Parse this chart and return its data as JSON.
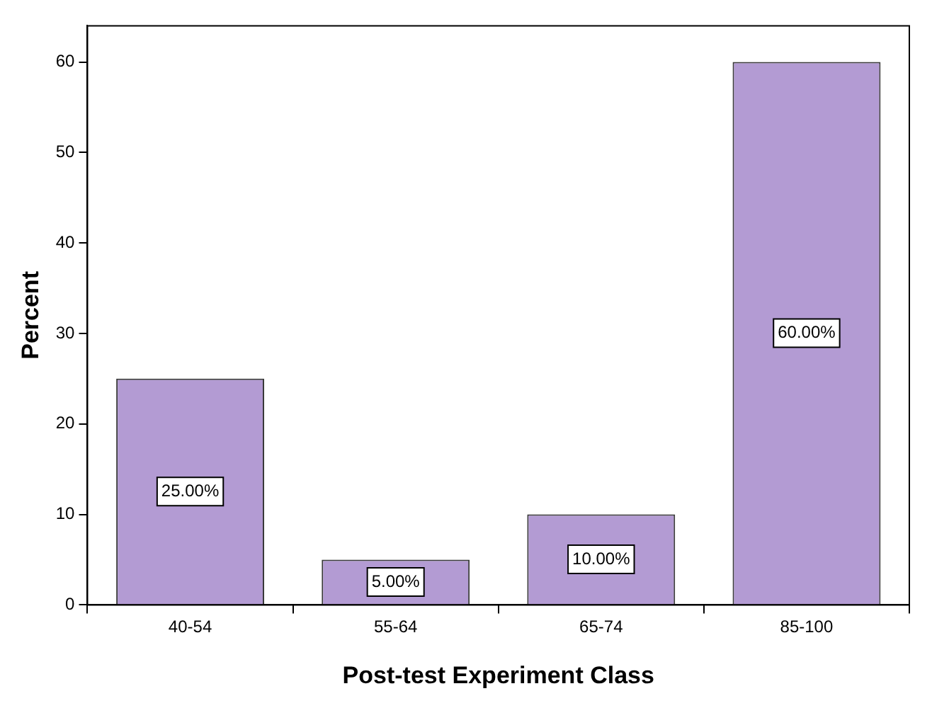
{
  "chart_data": {
    "type": "bar",
    "xlabel": "Post-test Experiment Class",
    "ylabel": "Percent",
    "categories": [
      "40-54",
      "55-64",
      "65-74",
      "85-100"
    ],
    "values": [
      25,
      5,
      10,
      60
    ],
    "color": "#b39bd3",
    "value_labels": [
      "25.00%",
      "5.00%",
      "10.00%",
      "60.00%"
    ],
    "ylim": [
      0,
      64
    ],
    "yticks": [
      0,
      10,
      20,
      30,
      40,
      50,
      60
    ],
    "grid": false,
    "legend": false
  }
}
